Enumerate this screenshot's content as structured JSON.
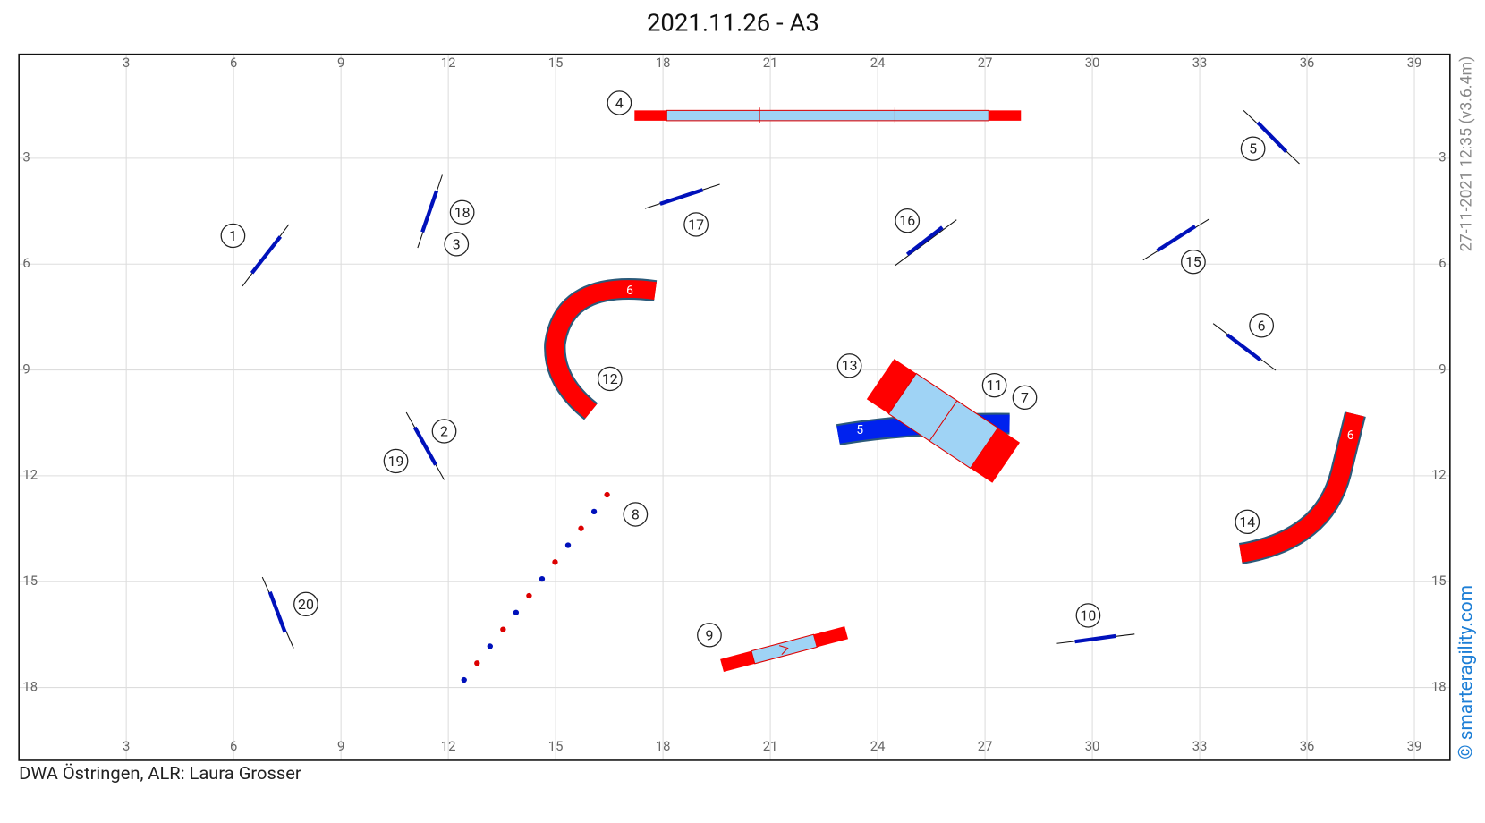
{
  "title": "2021.11.26 - A3",
  "x_ticks": [
    3,
    6,
    9,
    12,
    15,
    18,
    21,
    24,
    27,
    30,
    33,
    36,
    39
  ],
  "y_ticks": [
    3,
    6,
    9,
    12,
    15,
    18
  ],
  "footer": "DWA Östringen,  ALR: Laura Grosser",
  "timestamp": "27-11-2021 12:35  (v3.6.4m)",
  "credit": "© smarteragility.com",
  "obstacle_numbers": [
    "1",
    "2",
    "3",
    "4",
    "5",
    "6",
    "7",
    "8",
    "9",
    "10",
    "11",
    "12",
    "13",
    "14",
    "15",
    "16",
    "17",
    "18",
    "19",
    "20"
  ],
  "tunnel_labels": [
    "6",
    "5",
    "6"
  ]
}
